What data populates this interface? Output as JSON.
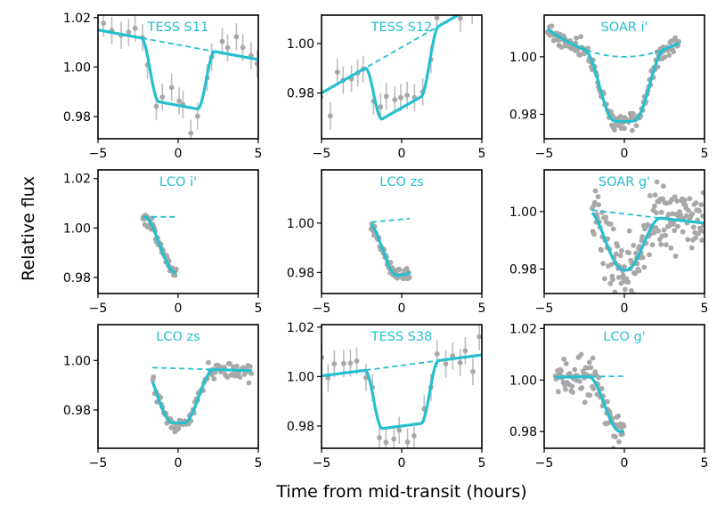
{
  "figure": {
    "ylabel": "Relative flux",
    "xlabel": "Time from mid-transit (hours)"
  },
  "colors": {
    "model": "#26bfcf",
    "data": "#a8a8a8",
    "errorbar": "#bdbdbd",
    "axis": "#000000",
    "title": "#26bfcf"
  },
  "chart_data": [
    {
      "type": "scatter",
      "title": "TESS S11",
      "xlim": [
        -5,
        5
      ],
      "ylim": [
        0.971,
        1.021
      ],
      "xticks": [
        -5,
        0,
        5
      ],
      "xtick_labels": [
        "−5",
        "0",
        "5"
      ],
      "yticks": [
        0.98,
        1.0,
        1.02
      ],
      "ytick_labels": [
        "0.98",
        "1.00",
        "1.02"
      ],
      "xrange": [
        -5,
        5
      ],
      "cad": 0.45,
      "err": 0.0055,
      "noise": 0.0045,
      "seed": 11,
      "model": {
        "tc": 0,
        "dur": 4.6,
        "ing": 1.1,
        "depth": 0.0245,
        "base": 1.009,
        "slope": -0.0012
      },
      "trend": {
        "base": 1.009,
        "slope": -0.0012
      }
    },
    {
      "type": "scatter",
      "title": "TESS S12",
      "xlim": [
        -5,
        5
      ],
      "ylim": [
        0.9615,
        1.0115
      ],
      "xticks": [
        -5,
        0,
        5
      ],
      "xtick_labels": [
        "−5",
        "0",
        "5"
      ],
      "yticks": [
        0.98,
        1.0
      ],
      "ytick_labels": [
        "0.98",
        "1.00"
      ],
      "xrange": [
        -5,
        5
      ],
      "cad": 0.45,
      "err": 0.0055,
      "noise": 0.0045,
      "seed": 12,
      "model": {
        "tc": 0,
        "dur": 4.6,
        "ing": 1.1,
        "depth": 0.0245,
        "base": 0.9985,
        "slope": 0.0037
      },
      "trend": {
        "base": 0.9985,
        "slope": 0.0037
      }
    },
    {
      "type": "scatter",
      "title": "SOAR i'",
      "xlim": [
        -5,
        5
      ],
      "ylim": [
        0.9715,
        1.0145
      ],
      "xticks": [
        -5,
        0,
        5
      ],
      "xtick_labels": [
        "−5",
        "0",
        "5"
      ],
      "yticks": [
        0.98,
        1.0
      ],
      "ytick_labels": [
        "0.98",
        "1.00"
      ],
      "xrange": [
        -4.8,
        3.4
      ],
      "cad": 0.055,
      "err": 0,
      "noise": 0.0016,
      "seed": 21,
      "model": {
        "tc": 0,
        "dur": 5.0,
        "ing": 1.9,
        "depth": 0.0225,
        "base": 1.0,
        "slope": 0.0,
        "curv": 0.00042
      },
      "trend": {
        "base": 1.0,
        "slope": 0.0,
        "curv": 0.00042
      }
    },
    {
      "type": "scatter",
      "title": "LCO i'",
      "xlim": [
        -5,
        5
      ],
      "ylim": [
        0.9735,
        1.0235
      ],
      "xticks": [
        -5,
        0,
        5
      ],
      "xtick_labels": [
        "−5",
        "0",
        "5"
      ],
      "yticks": [
        0.98,
        1.0,
        1.02
      ],
      "ytick_labels": [
        "0.98",
        "1.00",
        "1.02"
      ],
      "xrange": [
        -2.2,
        -0.1
      ],
      "cad": 0.04,
      "err": 0,
      "noise": 0.0012,
      "seed": 31,
      "model": {
        "tc": 0,
        "dur": 4.3,
        "ing": 2.0,
        "depth": 0.0225,
        "base": 1.0045,
        "slope": 0.0
      },
      "trend": {
        "base": 1.0045,
        "slope": 0.0
      }
    },
    {
      "type": "scatter",
      "title": "LCO zs",
      "xlim": [
        -5,
        5
      ],
      "ylim": [
        0.9715,
        1.0215
      ],
      "xticks": [
        -5,
        0,
        5
      ],
      "xtick_labels": [
        "−5",
        "0",
        "5"
      ],
      "yticks": [
        0.98,
        1.0
      ],
      "ytick_labels": [
        "0.98",
        "1.00"
      ],
      "xrange": [
        -1.9,
        0.5
      ],
      "cad": 0.045,
      "err": 0,
      "noise": 0.0015,
      "seed": 41,
      "model": {
        "tc": 0,
        "dur": 4.3,
        "ing": 1.9,
        "depth": 0.0225,
        "base": 1.0015,
        "slope": 0.0006
      },
      "trend": {
        "base": 1.0015,
        "slope": 0.0006
      }
    },
    {
      "type": "scatter",
      "title": "SOAR g'",
      "xlim": [
        -5,
        5
      ],
      "ylim": [
        0.9715,
        1.0145
      ],
      "xticks": [
        -5,
        0,
        5
      ],
      "xtick_labels": [
        "−5",
        "0",
        "5"
      ],
      "yticks": [
        0.98,
        1.0
      ],
      "ytick_labels": [
        "0.98",
        "1.00"
      ],
      "xrange": [
        -2.0,
        5.0
      ],
      "cad": 0.04,
      "err": 0,
      "noise": 0.0055,
      "seed": 51,
      "model": {
        "tc": 0,
        "dur": 4.6,
        "ing": 2.2,
        "depth": 0.0195,
        "base": 0.9992,
        "slope": -0.00065
      },
      "trend": {
        "base": 0.9992,
        "slope": -0.00065
      }
    },
    {
      "type": "scatter",
      "title": "LCO zs",
      "xlim": [
        -5,
        5
      ],
      "ylim": [
        0.9645,
        1.0145
      ],
      "xticks": [
        -5,
        0,
        5
      ],
      "xtick_labels": [
        "−5",
        "0",
        "5"
      ],
      "yticks": [
        0.98,
        1.0
      ],
      "ytick_labels": [
        "0.98",
        "1.00"
      ],
      "xrange": [
        -1.6,
        4.6
      ],
      "cad": 0.07,
      "err": 0,
      "noise": 0.0018,
      "seed": 61,
      "model": {
        "tc": 0,
        "dur": 4.5,
        "ing": 1.9,
        "depth": 0.022,
        "base": 0.9968,
        "slope": -0.0002
      },
      "trend": {
        "base": 0.9968,
        "slope": -0.0002
      }
    },
    {
      "type": "scatter",
      "title": "TESS S38",
      "xlim": [
        -5,
        5
      ],
      "ylim": [
        0.971,
        1.021
      ],
      "xticks": [
        -5,
        0,
        5
      ],
      "xtick_labels": [
        "−5",
        "0",
        "5"
      ],
      "yticks": [
        0.98,
        1.0,
        1.02
      ],
      "ytick_labels": [
        "0.98",
        "1.00",
        "1.02"
      ],
      "xrange": [
        -5,
        5
      ],
      "cad": 0.45,
      "err": 0.0055,
      "noise": 0.0045,
      "seed": 71,
      "model": {
        "tc": 0,
        "dur": 4.6,
        "ing": 1.1,
        "depth": 0.0245,
        "base": 1.0045,
        "slope": 0.00085
      },
      "trend": {
        "base": 1.0045,
        "slope": 0.00085
      }
    },
    {
      "type": "scatter",
      "title": "LCO g'",
      "xlim": [
        -5,
        5
      ],
      "ylim": [
        0.9735,
        1.0215
      ],
      "xticks": [
        -5,
        0,
        5
      ],
      "xtick_labels": [
        "−5",
        "0",
        "5"
      ],
      "yticks": [
        0.98,
        1.0,
        1.02
      ],
      "ytick_labels": [
        "0.98",
        "1.00",
        "1.02"
      ],
      "xrange": [
        -4.3,
        0.0
      ],
      "cad": 0.045,
      "err": 0,
      "noise": 0.0035,
      "seed": 81,
      "model": {
        "tc": 0,
        "dur": 4.5,
        "ing": 2.0,
        "depth": 0.0215,
        "base": 1.0015,
        "slope": 0.0001
      },
      "trend": {
        "base": 1.0015,
        "slope": 0.0001
      }
    }
  ]
}
